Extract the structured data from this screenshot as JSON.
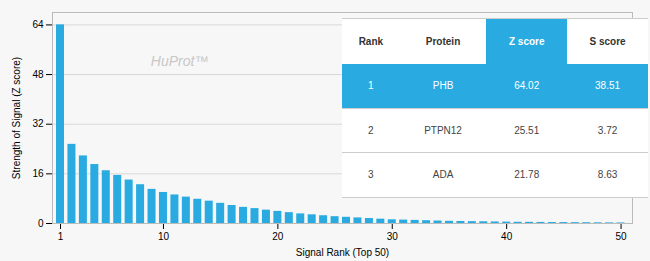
{
  "chart_data": {
    "type": "bar",
    "x": [
      1,
      2,
      3,
      4,
      5,
      6,
      7,
      8,
      9,
      10,
      11,
      12,
      13,
      14,
      15,
      16,
      17,
      18,
      19,
      20,
      21,
      22,
      23,
      24,
      25,
      26,
      27,
      28,
      29,
      30,
      31,
      32,
      33,
      34,
      35,
      36,
      37,
      38,
      39,
      40,
      41,
      42,
      43,
      44,
      45,
      46,
      47,
      48,
      49,
      50
    ],
    "values": [
      64.02,
      25.51,
      21.78,
      19.0,
      17.0,
      15.5,
      14.0,
      12.5,
      11.0,
      10.0,
      9.2,
      8.5,
      7.8,
      7.2,
      6.5,
      5.8,
      5.2,
      4.8,
      4.3,
      3.9,
      3.5,
      3.1,
      2.8,
      2.5,
      2.2,
      2.0,
      1.8,
      1.6,
      1.4,
      1.2,
      1.1,
      1.0,
      0.9,
      0.8,
      0.7,
      0.65,
      0.6,
      0.55,
      0.5,
      0.45,
      0.4,
      0.38,
      0.35,
      0.32,
      0.3,
      0.28,
      0.25,
      0.22,
      0.2,
      0.18
    ],
    "color": "#29abe2",
    "xlabel": "Signal Rank (Top 50)",
    "ylabel": "Strength of Signal (Z score)",
    "xlim": [
      0.3,
      51
    ],
    "xticks": [
      1,
      10,
      20,
      30,
      40,
      50
    ],
    "ylim": [
      0,
      68
    ],
    "yticks": [
      0,
      16,
      32,
      48,
      64
    ],
    "grid": true,
    "annotations": [
      "HuProt™"
    ],
    "table": {
      "columns": [
        "Rank",
        "Protein",
        "Z score",
        "S score"
      ],
      "rows": [
        [
          "1",
          "PHB",
          "64.02",
          "38.51"
        ],
        [
          "2",
          "PTPN12",
          "25.51",
          "3.72"
        ],
        [
          "3",
          "ADA",
          "21.78",
          "8.63"
        ]
      ]
    }
  }
}
